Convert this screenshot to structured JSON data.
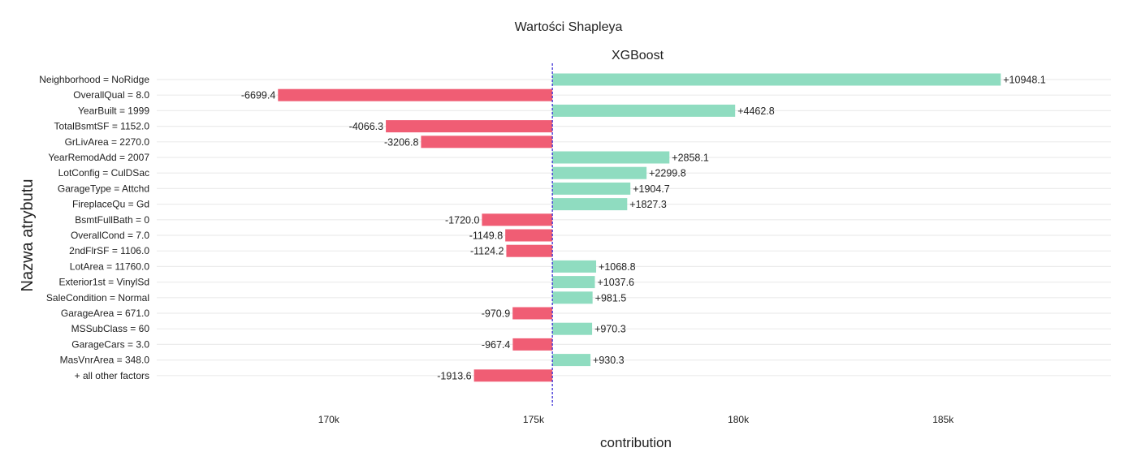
{
  "chart_data": {
    "type": "bar",
    "orientation": "horizontal",
    "title": "Wartości Shapleya",
    "subtitle": "XGBoost",
    "xlabel": "contribution",
    "ylabel": "Nazwa atrybutu",
    "intercept": 175460,
    "xlim": [
      165800,
      189100
    ],
    "xticks": [
      170000,
      175000,
      180000,
      185000
    ],
    "xtick_labels": [
      "170k",
      "175k",
      "180k",
      "185k"
    ],
    "grid": true,
    "colors": {
      "positive": "#8fdcc0",
      "negative": "#f05d74",
      "baseline": "#3b2fd6"
    },
    "categories": [
      "Neighborhood = NoRidge",
      "OverallQual = 8.0",
      "YearBuilt = 1999",
      "TotalBsmtSF = 1152.0",
      "GrLivArea = 2270.0",
      "YearRemodAdd = 2007",
      "LotConfig = CulDSac",
      "GarageType = Attchd",
      "FireplaceQu = Gd",
      "BsmtFullBath = 0",
      "OverallCond = 7.0",
      "2ndFlrSF = 1106.0",
      "LotArea = 11760.0",
      "Exterior1st = VinylSd",
      "SaleCondition = Normal",
      "GarageArea = 671.0",
      "MSSubClass = 60",
      "GarageCars = 3.0",
      "MasVnrArea = 348.0",
      "+ all other factors"
    ],
    "values": [
      10948.1,
      -6699.4,
      4462.8,
      -4066.3,
      -3206.8,
      2858.1,
      2299.8,
      1904.7,
      1827.3,
      -1720.0,
      -1149.8,
      -1124.2,
      1068.8,
      1037.6,
      981.5,
      -970.9,
      970.3,
      -967.4,
      930.3,
      -1913.6
    ],
    "labels": [
      "+10948.1",
      "-6699.4",
      "+4462.8",
      "-4066.3",
      "-3206.8",
      "+2858.1",
      "+2299.8",
      "+1904.7",
      "+1827.3",
      "-1720.0",
      "-1149.8",
      "-1124.2",
      "+1068.8",
      "+1037.6",
      "+981.5",
      "-970.9",
      "+970.3",
      "-967.4",
      "+930.3",
      "-1913.6"
    ]
  }
}
